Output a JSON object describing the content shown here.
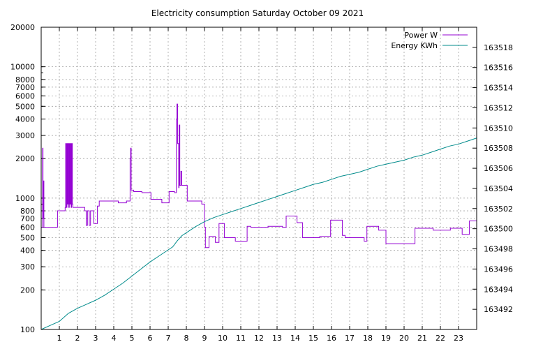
{
  "chart_data": {
    "type": "line",
    "title": "Electricity consumption Saturday October 09 2021",
    "x": {
      "label": "",
      "min": 0,
      "max": 24,
      "ticks": [
        1,
        2,
        3,
        4,
        5,
        6,
        7,
        8,
        9,
        10,
        11,
        12,
        13,
        14,
        15,
        16,
        17,
        18,
        19,
        20,
        21,
        22,
        23
      ]
    },
    "y_left": {
      "label": "",
      "scale": "log",
      "min": 100,
      "max": 20000,
      "ticks": [
        100,
        200,
        300,
        400,
        500,
        600,
        700,
        800,
        1000,
        2000,
        3000,
        4000,
        5000,
        6000,
        7000,
        8000,
        10000,
        20000
      ]
    },
    "y_right": {
      "label": "",
      "scale": "linear",
      "min": 163490,
      "max": 163520,
      "ticks": [
        163492,
        163494,
        163496,
        163498,
        163500,
        163502,
        163504,
        163506,
        163508,
        163510,
        163512,
        163514,
        163516,
        163518
      ]
    },
    "grid": true,
    "legend": "top-right",
    "series": [
      {
        "name": "Power W",
        "axis": "left",
        "color": "#9400d3",
        "step": true,
        "points": [
          [
            0,
            600
          ],
          [
            0.08,
            2400
          ],
          [
            0.1,
            700
          ],
          [
            0.12,
            1350
          ],
          [
            0.15,
            600
          ],
          [
            0.85,
            600
          ],
          [
            0.9,
            800
          ],
          [
            1.3,
            800
          ],
          [
            1.32,
            850
          ],
          [
            1.35,
            2600
          ],
          [
            1.38,
            850
          ],
          [
            1.42,
            2600
          ],
          [
            1.45,
            900
          ],
          [
            1.48,
            2600
          ],
          [
            1.52,
            850
          ],
          [
            1.55,
            2600
          ],
          [
            1.58,
            900
          ],
          [
            1.62,
            2600
          ],
          [
            1.65,
            850
          ],
          [
            1.68,
            2600
          ],
          [
            1.72,
            900
          ],
          [
            1.75,
            850
          ],
          [
            2.4,
            800
          ],
          [
            2.48,
            620
          ],
          [
            2.55,
            800
          ],
          [
            2.65,
            620
          ],
          [
            2.72,
            800
          ],
          [
            2.85,
            800
          ],
          [
            2.9,
            640
          ],
          [
            3.1,
            870
          ],
          [
            3.2,
            950
          ],
          [
            4.25,
            920
          ],
          [
            4.7,
            950
          ],
          [
            4.9,
            2000
          ],
          [
            4.93,
            2400
          ],
          [
            4.96,
            1150
          ],
          [
            5.1,
            1120
          ],
          [
            5.55,
            1100
          ],
          [
            6.05,
            980
          ],
          [
            6.65,
            920
          ],
          [
            7.05,
            1120
          ],
          [
            7.35,
            1100
          ],
          [
            7.45,
            4000
          ],
          [
            7.48,
            5200
          ],
          [
            7.52,
            2600
          ],
          [
            7.58,
            1200
          ],
          [
            7.6,
            3600
          ],
          [
            7.64,
            1250
          ],
          [
            7.7,
            1600
          ],
          [
            7.75,
            1250
          ],
          [
            8.05,
            950
          ],
          [
            8.85,
            900
          ],
          [
            9.0,
            600
          ],
          [
            9.05,
            420
          ],
          [
            9.25,
            510
          ],
          [
            9.6,
            460
          ],
          [
            9.8,
            640
          ],
          [
            10.1,
            500
          ],
          [
            10.7,
            470
          ],
          [
            11.35,
            610
          ],
          [
            11.55,
            600
          ],
          [
            12.5,
            610
          ],
          [
            13.3,
            600
          ],
          [
            13.5,
            730
          ],
          [
            14.1,
            650
          ],
          [
            14.4,
            500
          ],
          [
            15.35,
            510
          ],
          [
            15.95,
            680
          ],
          [
            16.6,
            520
          ],
          [
            16.75,
            500
          ],
          [
            17.8,
            470
          ],
          [
            17.95,
            610
          ],
          [
            18.6,
            570
          ],
          [
            19.0,
            450
          ],
          [
            20.6,
            590
          ],
          [
            21.6,
            570
          ],
          [
            22.55,
            590
          ],
          [
            23.2,
            530
          ],
          [
            23.6,
            670
          ],
          [
            24,
            670
          ]
        ]
      },
      {
        "name": "Energy KWh",
        "axis": "right",
        "color": "#008b8b",
        "step": false,
        "points": [
          [
            0,
            163490.0
          ],
          [
            0.5,
            163490.4
          ],
          [
            1,
            163490.8
          ],
          [
            1.5,
            163491.6
          ],
          [
            2,
            163492.1
          ],
          [
            2.5,
            163492.5
          ],
          [
            3,
            163492.9
          ],
          [
            3.5,
            163493.4
          ],
          [
            4,
            163494.0
          ],
          [
            4.5,
            163494.6
          ],
          [
            5,
            163495.3
          ],
          [
            5.5,
            163496.0
          ],
          [
            6,
            163496.7
          ],
          [
            6.5,
            163497.3
          ],
          [
            7,
            163497.9
          ],
          [
            7.25,
            163498.2
          ],
          [
            7.5,
            163498.8
          ],
          [
            7.75,
            163499.3
          ],
          [
            8,
            163499.6
          ],
          [
            8.5,
            163500.2
          ],
          [
            9,
            163500.7
          ],
          [
            9.5,
            163501.1
          ],
          [
            10,
            163501.4
          ],
          [
            10.5,
            163501.7
          ],
          [
            11,
            163502.0
          ],
          [
            11.5,
            163502.3
          ],
          [
            12,
            163502.6
          ],
          [
            12.5,
            163502.9
          ],
          [
            13,
            163503.2
          ],
          [
            13.5,
            163503.5
          ],
          [
            14,
            163503.8
          ],
          [
            14.5,
            163504.1
          ],
          [
            15,
            163504.4
          ],
          [
            15.5,
            163504.6
          ],
          [
            16,
            163504.9
          ],
          [
            16.5,
            163505.2
          ],
          [
            17,
            163505.4
          ],
          [
            17.5,
            163505.6
          ],
          [
            18,
            163505.9
          ],
          [
            18.5,
            163506.2
          ],
          [
            19,
            163506.4
          ],
          [
            19.5,
            163506.6
          ],
          [
            20,
            163506.8
          ],
          [
            20.5,
            163507.1
          ],
          [
            21,
            163507.3
          ],
          [
            21.5,
            163507.6
          ],
          [
            22,
            163507.9
          ],
          [
            22.5,
            163508.2
          ],
          [
            23,
            163508.4
          ],
          [
            23.5,
            163508.7
          ],
          [
            24,
            163509.0
          ]
        ]
      }
    ]
  }
}
